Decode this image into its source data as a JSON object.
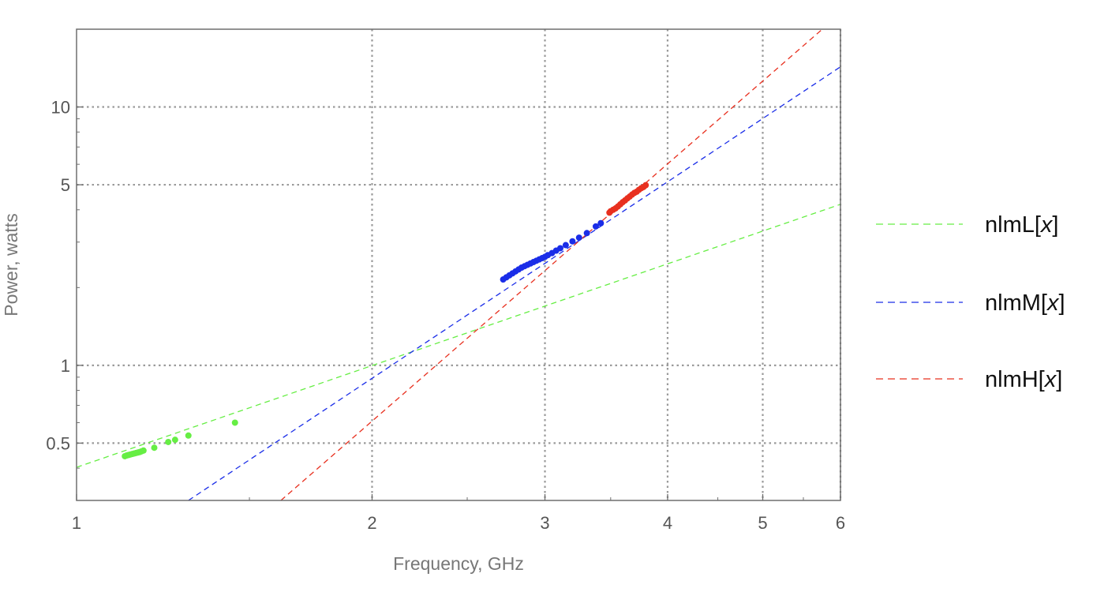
{
  "chart_data": {
    "type": "scatter",
    "xlabel": "Frequency, GHz",
    "ylabel": "Power, watts",
    "x_scale": "log",
    "y_scale": "log",
    "xlim": [
      1,
      6
    ],
    "ylim": [
      0.3,
      20
    ],
    "x_ticks": [
      {
        "value": 1,
        "label": "1"
      },
      {
        "value": 2,
        "label": "2"
      },
      {
        "value": 3,
        "label": "3"
      },
      {
        "value": 4,
        "label": "4"
      },
      {
        "value": 5,
        "label": "5"
      },
      {
        "value": 6,
        "label": "6"
      }
    ],
    "y_ticks": [
      {
        "value": 0.5,
        "label": "0.5"
      },
      {
        "value": 1,
        "label": "1"
      },
      {
        "value": 5,
        "label": "5"
      },
      {
        "value": 10,
        "label": "10"
      }
    ],
    "x_gridlines": [
      2,
      3,
      4,
      5,
      6
    ],
    "y_gridlines": [
      0.5,
      1,
      5,
      10
    ],
    "grid": true,
    "legend_position": "right",
    "series": [
      {
        "name": "nlmL[x]",
        "legend_main": "nlmL[",
        "legend_var": "x",
        "legend_close": "]",
        "color": "#66ee44",
        "fit": {
          "x": [
            1,
            6
          ],
          "y": [
            0.403,
            4.2
          ]
        },
        "points": [
          [
            1.12,
            0.445
          ],
          [
            1.125,
            0.448
          ],
          [
            1.13,
            0.45
          ],
          [
            1.135,
            0.452
          ],
          [
            1.14,
            0.454
          ],
          [
            1.145,
            0.456
          ],
          [
            1.15,
            0.458
          ],
          [
            1.155,
            0.46
          ],
          [
            1.16,
            0.462
          ],
          [
            1.165,
            0.465
          ],
          [
            1.17,
            0.468
          ],
          [
            1.2,
            0.48
          ],
          [
            1.24,
            0.505
          ],
          [
            1.26,
            0.515
          ],
          [
            1.3,
            0.535
          ],
          [
            1.45,
            0.6
          ]
        ]
      },
      {
        "name": "nlmM[x]",
        "legend_main": "nlmM[",
        "legend_var": "x",
        "legend_close": "]",
        "color": "#1a2de8",
        "fit": {
          "x": [
            1.3,
            6
          ],
          "y": [
            0.3,
            14.3
          ]
        },
        "points": [
          [
            2.72,
            2.15
          ],
          [
            2.74,
            2.19
          ],
          [
            2.76,
            2.23
          ],
          [
            2.78,
            2.27
          ],
          [
            2.8,
            2.31
          ],
          [
            2.82,
            2.35
          ],
          [
            2.84,
            2.39
          ],
          [
            2.86,
            2.42
          ],
          [
            2.88,
            2.45
          ],
          [
            2.9,
            2.48
          ],
          [
            2.92,
            2.51
          ],
          [
            2.94,
            2.54
          ],
          [
            2.96,
            2.57
          ],
          [
            2.98,
            2.6
          ],
          [
            3.0,
            2.63
          ],
          [
            3.02,
            2.67
          ],
          [
            3.05,
            2.72
          ],
          [
            3.08,
            2.78
          ],
          [
            3.11,
            2.84
          ],
          [
            3.15,
            2.92
          ],
          [
            3.2,
            3.02
          ],
          [
            3.25,
            3.12
          ],
          [
            3.31,
            3.25
          ],
          [
            3.38,
            3.45
          ],
          [
            3.42,
            3.55
          ]
        ]
      },
      {
        "name": "nlmH[x]",
        "legend_main": "nlmH[",
        "legend_var": "x",
        "legend_close": "]",
        "color": "#e8301f",
        "fit": {
          "x": [
            1.615,
            5.75
          ],
          "y": [
            0.3,
            20
          ]
        },
        "points": [
          [
            3.49,
            3.9
          ],
          [
            3.5,
            3.95
          ],
          [
            3.52,
            4.0
          ],
          [
            3.54,
            4.05
          ],
          [
            3.56,
            4.12
          ],
          [
            3.58,
            4.2
          ],
          [
            3.6,
            4.28
          ],
          [
            3.62,
            4.35
          ],
          [
            3.64,
            4.43
          ],
          [
            3.66,
            4.5
          ],
          [
            3.68,
            4.58
          ],
          [
            3.7,
            4.65
          ],
          [
            3.72,
            4.7
          ],
          [
            3.74,
            4.78
          ],
          [
            3.76,
            4.85
          ],
          [
            3.78,
            4.9
          ],
          [
            3.8,
            4.98
          ]
        ]
      }
    ]
  }
}
